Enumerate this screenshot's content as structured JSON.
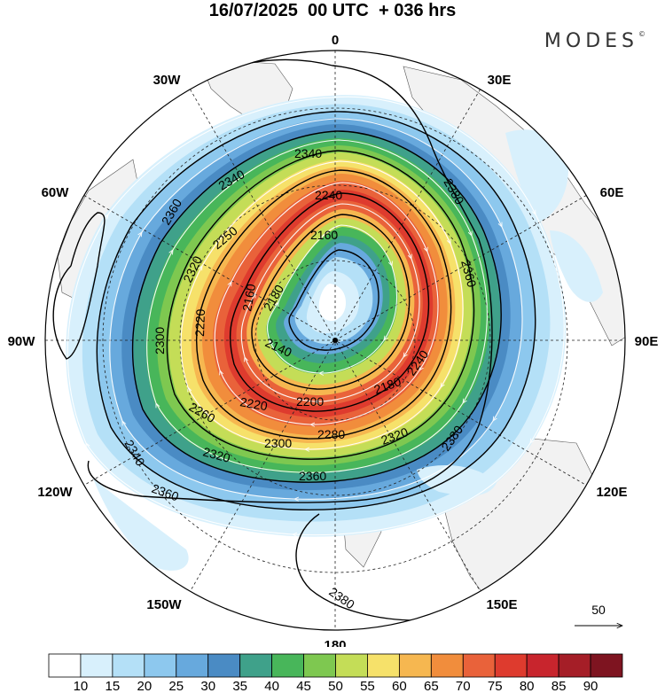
{
  "title": "16/07/2025  00 UTC  + 036 hrs",
  "brand": "MODES",
  "brand_mark": "©",
  "longitude_labels": {
    "top": "0",
    "bottom": "180",
    "w30": "30W",
    "e30": "30E",
    "w60": "60W",
    "e60": "60E",
    "w90": "90W",
    "e90": "90E",
    "w120": "120W",
    "e120": "120E",
    "w150": "150W",
    "e150": "150E"
  },
  "contour_labels": [
    "2340",
    "2340",
    "2360",
    "2380",
    "2240",
    "2160",
    "2250",
    "2320",
    "2360",
    "2180",
    "2300",
    "2220",
    "2140",
    "2160",
    "2240",
    "2260",
    "2220",
    "2200",
    "2180",
    "2280",
    "2320",
    "2300",
    "2340",
    "2320",
    "2360",
    "2380",
    "2360",
    "2380"
  ],
  "wind_reference": "50",
  "colorbar": {
    "labels": [
      "10",
      "15",
      "20",
      "25",
      "30",
      "35",
      "40",
      "45",
      "50",
      "55",
      "60",
      "65",
      "70",
      "75",
      "80",
      "85",
      "90"
    ],
    "colors": [
      "#ffffff",
      "#d8f0fc",
      "#b4e0f7",
      "#8dc8ee",
      "#67a9dd",
      "#4a8bc4",
      "#3fa18a",
      "#48b65a",
      "#7ec850",
      "#c4dd57",
      "#f6e16a",
      "#f6b750",
      "#f18d3c",
      "#e9623a",
      "#de3b2e",
      "#c8252d",
      "#a51e27",
      "#7e1420"
    ]
  }
}
